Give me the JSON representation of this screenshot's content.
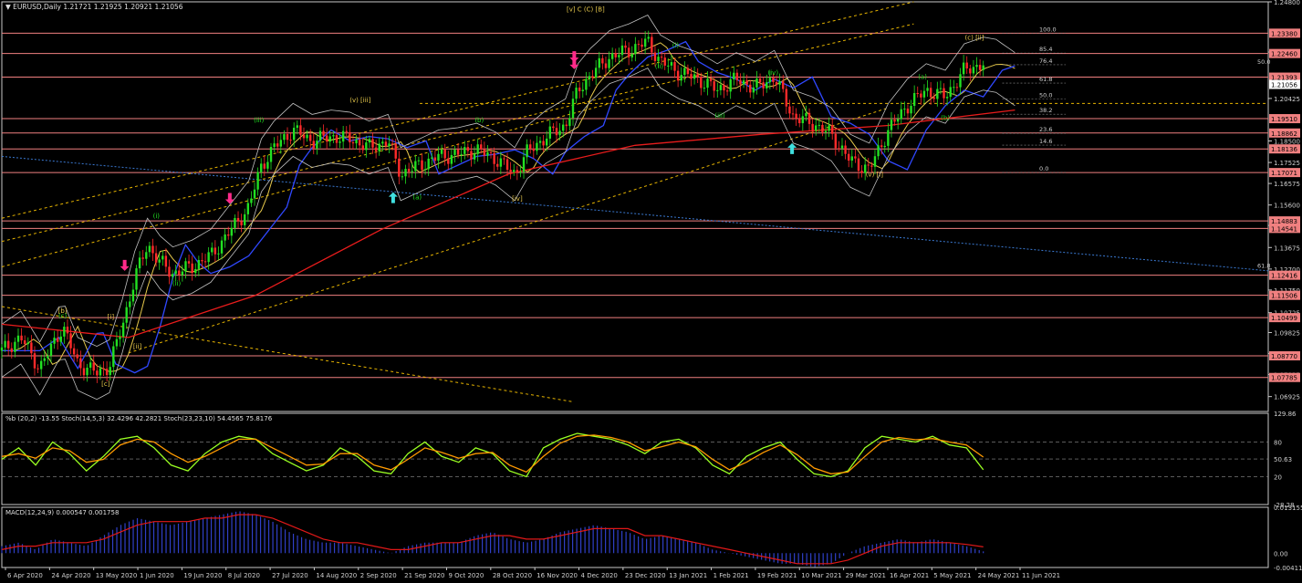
{
  "header": {
    "main": "▼ EURUSD,Daily  1.21721 1.21925 1.20921 1.21056",
    "osc": "%b (20,2) -13.55  Stoch(14,5,3) 32.4296 42.2821  Stoch(23,23,10) 54.4565 75.8176",
    "macd": "MACD(12,24,9) 0.000547 0.001758"
  },
  "colors": {
    "background": "#000000",
    "frame": "#c8c8c8",
    "hline": "#f08080",
    "axis_text": "#d0d0d0",
    "ema_fast": "#e6c84b",
    "ema_blue": "#3048ff",
    "ema_red": "#e81c1c",
    "bollinger": "#c0c0c0",
    "channel": "#e6b400",
    "candle_up": "#22e022",
    "candle_down": "#ff2a2a",
    "stoch_main": "#9aff22",
    "stoch_signal": "#ff9a00",
    "macd_hist": "#3040c8",
    "macd_signal": "#e01818",
    "arrow_pink": "#ff2a8a",
    "arrow_cyan": "#40e0e0",
    "price_tag": "#f08080",
    "current_tag": "#ffffff"
  },
  "chart_data": [
    {
      "type": "candlestick",
      "title": "EURUSD,Daily",
      "ohlc_last": {
        "open": 1.21721,
        "high": 1.21925,
        "low": 1.20921,
        "close": 1.21056
      },
      "ylim": [
        1.0625,
        1.248
      ],
      "y_ticks": [
        "1.24800",
        "1.22525",
        "1.20425",
        "1.18500",
        "1.17525",
        "1.16575",
        "1.15600",
        "1.14675",
        "1.13675",
        "1.12700",
        "1.11750",
        "1.10725",
        "1.09825",
        "1.08875",
        "1.07925",
        "1.06925"
      ],
      "x_ticks": [
        "6 Apr 2020",
        "24 Apr 2020",
        "13 May 2020",
        "1 Jun 2020",
        "19 Jun 2020",
        "8 Jul 2020",
        "27 Jul 2020",
        "14 Aug 2020",
        "2 Sep 2020",
        "21 Sep 2020",
        "9 Oct 2020",
        "28 Oct 2020",
        "16 Nov 2020",
        "4 Dec 2020",
        "23 Dec 2020",
        "13 Jan 2021",
        "1 Feb 2021",
        "19 Feb 2021",
        "10 Mar 2021",
        "29 Mar 2021",
        "16 Apr 2021",
        "5 May 2021",
        "24 May 2021",
        "11 Jun 2021"
      ],
      "horizontal_levels": [
        {
          "value": 1.2338,
          "label": "1.23380"
        },
        {
          "value": 1.2246,
          "label": "1.22460"
        },
        {
          "value": 1.2139,
          "label": "1.21393"
        },
        {
          "value": 1.1951,
          "label": "1.19510"
        },
        {
          "value": 1.1886,
          "label": "1.18862"
        },
        {
          "value": 1.1814,
          "label": "1.18136"
        },
        {
          "value": 1.1707,
          "label": "1.17071"
        },
        {
          "value": 1.1488,
          "label": "1.14883"
        },
        {
          "value": 1.1454,
          "label": "1.14541"
        },
        {
          "value": 1.1242,
          "label": "1.12416"
        },
        {
          "value": 1.1151,
          "label": "1.11506"
        },
        {
          "value": 1.105,
          "label": "1.10499"
        },
        {
          "value": 1.0877,
          "label": "1.08770"
        },
        {
          "value": 1.0779,
          "label": "1.07785"
        }
      ],
      "current_price": {
        "value": 1.2106,
        "label": "1.21056"
      },
      "fibonacci": [
        {
          "label": "100.0",
          "value": 1.2338
        },
        {
          "label": "85.4",
          "value": 1.2248
        },
        {
          "label": "76.4",
          "value": 1.2195
        },
        {
          "label": "61.8",
          "value": 1.2112
        },
        {
          "label": "50.0",
          "value": 1.2041
        },
        {
          "label": "38.2",
          "value": 1.1971
        },
        {
          "label": "23.6",
          "value": 1.1885
        },
        {
          "label": "14.6",
          "value": 1.1831
        },
        {
          "label": "0.0",
          "value": 1.1707
        }
      ],
      "fib_side_labels": [
        "50.0",
        "61.8"
      ],
      "wave_labels": [
        {
          "text": "[b]",
          "x": 0.048,
          "value": 1.1071,
          "color": "#e6c84b"
        },
        {
          "text": "(c)",
          "x": 0.048,
          "value": 1.1048,
          "color": "#22e022"
        },
        {
          "text": "[c]",
          "x": 0.082,
          "value": 1.074,
          "color": "#e6c84b"
        },
        {
          "text": "[i]",
          "x": 0.086,
          "value": 1.1045,
          "color": "#e6c84b"
        },
        {
          "text": "[ii]",
          "x": 0.107,
          "value": 1.091,
          "color": "#e6c84b"
        },
        {
          "text": "(i)",
          "x": 0.122,
          "value": 1.15,
          "color": "#22e022"
        },
        {
          "text": "(ii)",
          "x": 0.138,
          "value": 1.1195,
          "color": "#22e022"
        },
        {
          "text": "(iii)",
          "x": 0.203,
          "value": 1.1935,
          "color": "#22e022"
        },
        {
          "text": "(v) [iii]",
          "x": 0.283,
          "value": 1.2025,
          "color": "#e6c84b"
        },
        {
          "text": "(a)",
          "x": 0.328,
          "value": 1.1585,
          "color": "#22e022"
        },
        {
          "text": "(b)",
          "x": 0.377,
          "value": 1.1935,
          "color": "#22e022"
        },
        {
          "text": "[iv]",
          "x": 0.407,
          "value": 1.158,
          "color": "#e6c84b"
        },
        {
          "text": "[v] C (C) [B]",
          "x": 0.461,
          "value": 1.2436,
          "color": "#e6c84b"
        },
        {
          "text": "(i)",
          "x": 0.532,
          "value": 1.2274,
          "color": "#22e022"
        },
        {
          "text": "(ii)",
          "x": 0.519,
          "value": 1.2178,
          "color": "#22e022"
        },
        {
          "text": "(iii)",
          "x": 0.567,
          "value": 1.1955,
          "color": "#22e022"
        },
        {
          "text": "(iv)",
          "x": 0.609,
          "value": 1.215,
          "color": "#22e022"
        },
        {
          "text": "(v) [i]",
          "x": 0.689,
          "value": 1.1688,
          "color": "#e6c84b"
        },
        {
          "text": "(a)",
          "x": 0.727,
          "value": 1.213,
          "color": "#22e022"
        },
        {
          "text": "(b)",
          "x": 0.745,
          "value": 1.1946,
          "color": "#22e022"
        },
        {
          "text": "(c) [ii]",
          "x": 0.768,
          "value": 1.2309,
          "color": "#e6c84b"
        }
      ],
      "arrows": [
        {
          "dir": "down",
          "x": 0.097,
          "value": 1.1262,
          "color": "#ff2a8a"
        },
        {
          "dir": "down",
          "x": 0.18,
          "value": 1.1565,
          "color": "#ff2a8a"
        },
        {
          "dir": "down",
          "x": 0.452,
          "value": 1.2207,
          "color": "#ff2a8a"
        },
        {
          "dir": "down",
          "x": 0.452,
          "value": 1.2175,
          "color": "#ff2a8a"
        },
        {
          "dir": "up",
          "x": 0.309,
          "value": 1.1618,
          "color": "#40e0e0"
        },
        {
          "dir": "up",
          "x": 0.624,
          "value": 1.184,
          "color": "#40e0e0"
        }
      ],
      "series_anchor": [
        [
          0,
          1.09
        ],
        [
          0.015,
          1.096
        ],
        [
          0.03,
          1.082
        ],
        [
          0.048,
          1.101
        ],
        [
          0.06,
          1.084
        ],
        [
          0.075,
          1.08
        ],
        [
          0.085,
          1.083
        ],
        [
          0.095,
          1.101
        ],
        [
          0.105,
          1.123
        ],
        [
          0.115,
          1.138
        ],
        [
          0.125,
          1.13
        ],
        [
          0.135,
          1.125
        ],
        [
          0.15,
          1.128
        ],
        [
          0.165,
          1.133
        ],
        [
          0.18,
          1.144
        ],
        [
          0.195,
          1.155
        ],
        [
          0.205,
          1.174
        ],
        [
          0.215,
          1.182
        ],
        [
          0.23,
          1.19
        ],
        [
          0.245,
          1.185
        ],
        [
          0.26,
          1.187
        ],
        [
          0.275,
          1.186
        ],
        [
          0.29,
          1.182
        ],
        [
          0.305,
          1.185
        ],
        [
          0.315,
          1.17
        ],
        [
          0.33,
          1.174
        ],
        [
          0.345,
          1.178
        ],
        [
          0.36,
          1.179
        ],
        [
          0.375,
          1.181
        ],
        [
          0.39,
          1.177
        ],
        [
          0.405,
          1.17
        ],
        [
          0.415,
          1.18
        ],
        [
          0.43,
          1.187
        ],
        [
          0.445,
          1.192
        ],
        [
          0.455,
          1.208
        ],
        [
          0.465,
          1.215
        ],
        [
          0.48,
          1.223
        ],
        [
          0.495,
          1.226
        ],
        [
          0.51,
          1.23
        ],
        [
          0.52,
          1.221
        ],
        [
          0.535,
          1.216
        ],
        [
          0.55,
          1.213
        ],
        [
          0.565,
          1.208
        ],
        [
          0.58,
          1.213
        ],
        [
          0.595,
          1.209
        ],
        [
          0.61,
          1.214
        ],
        [
          0.625,
          1.196
        ],
        [
          0.64,
          1.193
        ],
        [
          0.655,
          1.188
        ],
        [
          0.67,
          1.176
        ],
        [
          0.685,
          1.172
        ],
        [
          0.7,
          1.19
        ],
        [
          0.715,
          1.201
        ],
        [
          0.73,
          1.208
        ],
        [
          0.745,
          1.205
        ],
        [
          0.76,
          1.217
        ],
        [
          0.775,
          1.22
        ],
        [
          0.785,
          1.219
        ],
        [
          0.8,
          1.213
        ]
      ]
    },
    {
      "type": "line",
      "title": "%b (20,2) / Stochastic",
      "ylim": [
        -28.28,
        129.86
      ],
      "y_ticks": [
        "129.86",
        "80",
        "50.63",
        "20",
        "-28.28"
      ],
      "series": [
        {
          "name": "Stoch(14,5,3)",
          "values": [
            50,
            70,
            40,
            80,
            60,
            30,
            55,
            85,
            90,
            70,
            40,
            30,
            60,
            80,
            90,
            85,
            60,
            45,
            30,
            40,
            70,
            55,
            30,
            25,
            60,
            80,
            55,
            45,
            70,
            60,
            30,
            20,
            70,
            85,
            95,
            90,
            85,
            75,
            60,
            80,
            85,
            70,
            40,
            25,
            55,
            70,
            80,
            50,
            25,
            20,
            30,
            70,
            90,
            85,
            80,
            90,
            75,
            70,
            32
          ]
        },
        {
          "name": "Stoch(23,23,10)",
          "values": [
            55,
            60,
            52,
            70,
            65,
            45,
            50,
            75,
            85,
            80,
            60,
            45,
            55,
            70,
            85,
            85,
            70,
            55,
            40,
            42,
            60,
            60,
            40,
            32,
            50,
            70,
            62,
            52,
            60,
            62,
            40,
            28,
            55,
            78,
            90,
            92,
            88,
            80,
            65,
            72,
            80,
            72,
            50,
            32,
            45,
            62,
            75,
            58,
            35,
            25,
            28,
            55,
            80,
            88,
            84,
            86,
            80,
            75,
            54
          ]
        }
      ]
    },
    {
      "type": "area",
      "title": "MACD(12,24,9)",
      "ylim": [
        -0.0041,
        0.0131
      ],
      "y_ticks": [
        "0.013155",
        "0.00",
        "-0.004111"
      ],
      "series": [
        {
          "name": "MACD",
          "values": [
            0.002,
            0.003,
            0.001,
            0.004,
            0.003,
            0.002,
            0.005,
            0.008,
            0.01,
            0.009,
            0.008,
            0.009,
            0.01,
            0.011,
            0.012,
            0.011,
            0.009,
            0.006,
            0.004,
            0.003,
            0.003,
            0.002,
            0.001,
            0.0,
            0.002,
            0.003,
            0.003,
            0.003,
            0.005,
            0.006,
            0.004,
            0.003,
            0.004,
            0.006,
            0.007,
            0.008,
            0.007,
            0.006,
            0.004,
            0.005,
            0.004,
            0.003,
            0.001,
            0.0,
            -0.001,
            -0.002,
            -0.003,
            -0.003,
            -0.004,
            -0.003,
            0.0,
            0.002,
            0.003,
            0.004,
            0.003,
            0.004,
            0.003,
            0.002,
            0.0005
          ]
        },
        {
          "name": "Signal",
          "values": [
            0.001,
            0.002,
            0.002,
            0.003,
            0.003,
            0.003,
            0.004,
            0.006,
            0.008,
            0.009,
            0.009,
            0.009,
            0.01,
            0.01,
            0.011,
            0.011,
            0.01,
            0.008,
            0.006,
            0.004,
            0.003,
            0.003,
            0.002,
            0.001,
            0.001,
            0.002,
            0.003,
            0.003,
            0.004,
            0.005,
            0.005,
            0.004,
            0.004,
            0.005,
            0.006,
            0.007,
            0.007,
            0.007,
            0.005,
            0.005,
            0.004,
            0.003,
            0.002,
            0.001,
            0.0,
            -0.001,
            -0.002,
            -0.003,
            -0.003,
            -0.003,
            -0.002,
            0.0,
            0.002,
            0.003,
            0.003,
            0.003,
            0.003,
            0.0025,
            0.0018
          ]
        }
      ]
    }
  ]
}
